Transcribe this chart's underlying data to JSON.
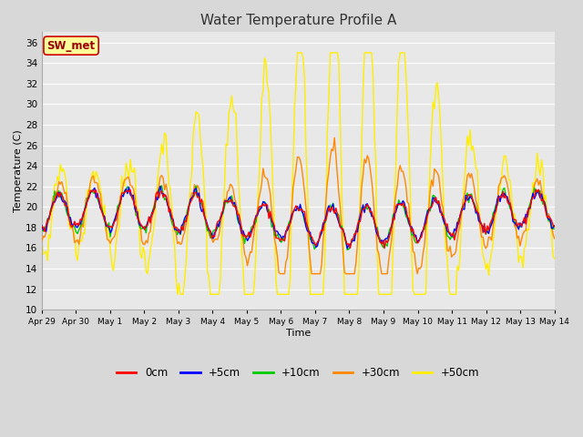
{
  "title": "Water Temperature Profile A",
  "xlabel": "Time",
  "ylabel": "Temperature (C)",
  "ylim": [
    10,
    37
  ],
  "yticks": [
    10,
    12,
    14,
    16,
    18,
    20,
    22,
    24,
    26,
    28,
    30,
    32,
    34,
    36
  ],
  "x_labels": [
    "Apr 29",
    "Apr 30",
    "May 1",
    "May 2",
    "May 3",
    "May 4",
    "May 5",
    "May 6",
    "May 7",
    "May 8",
    "May 9",
    "May 10",
    "May 11",
    "May 12",
    "May 13",
    "May 14"
  ],
  "legend_labels": [
    "0cm",
    "+5cm",
    "+10cm",
    "+30cm",
    "+50cm"
  ],
  "legend_colors": [
    "#ff0000",
    "#0000ff",
    "#00cc00",
    "#ff8800",
    "#ffee00"
  ],
  "line_width": 1.0,
  "fig_bg_color": "#d8d8d8",
  "plot_bg_color": "#e8e8e8",
  "grid_color": "#ffffff",
  "annotation_text": "SW_met",
  "annotation_bg": "#ffff99",
  "annotation_border": "#cc0000"
}
